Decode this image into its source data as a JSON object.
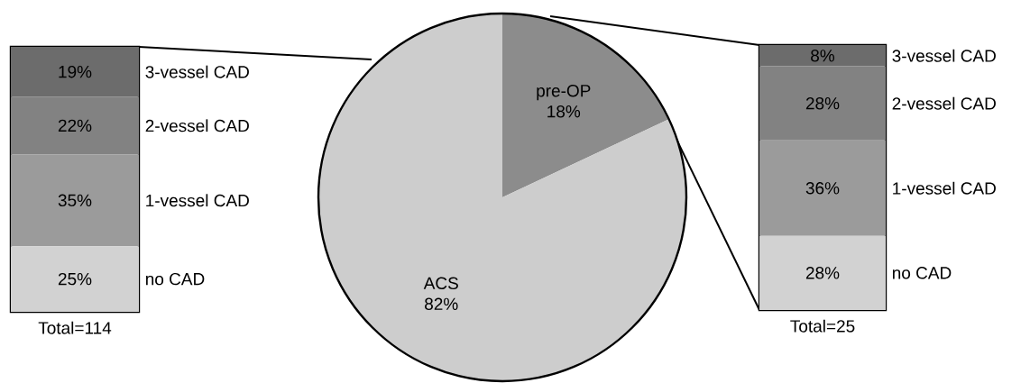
{
  "chart_data": [
    {
      "type": "bar",
      "stacked": true,
      "categories": [
        null
      ],
      "xlabel": "Total=114",
      "series": [
        {
          "name": "no CAD",
          "color": "#d2d2d2",
          "values": [
            25
          ],
          "value_labels": [
            "25%"
          ]
        },
        {
          "name": "1-vessel CAD",
          "color": "#9b9b9b",
          "values": [
            35
          ],
          "value_labels": [
            "35%"
          ]
        },
        {
          "name": "2-vessel CAD",
          "color": "#828282",
          "values": [
            22
          ],
          "value_labels": [
            "22%"
          ]
        },
        {
          "name": "3-vessel CAD",
          "color": "#6c6c6c",
          "values": [
            19
          ],
          "value_labels": [
            "19%"
          ]
        }
      ]
    },
    {
      "type": "pie",
      "categories": [
        "pre-OP",
        "ACS"
      ],
      "values": [
        18,
        82
      ],
      "colors": [
        "#8c8c8c",
        "#cdcdcd"
      ],
      "value_labels": [
        "18%",
        "82%"
      ]
    },
    {
      "type": "bar",
      "stacked": true,
      "categories": [
        null
      ],
      "xlabel": "Total=25",
      "series": [
        {
          "name": "no CAD",
          "color": "#d2d2d2",
          "values": [
            28
          ],
          "value_labels": [
            "28%"
          ]
        },
        {
          "name": "1-vessel CAD",
          "color": "#9b9b9b",
          "values": [
            36
          ],
          "value_labels": [
            "36%"
          ]
        },
        {
          "name": "2-vessel CAD",
          "color": "#828282",
          "values": [
            28
          ],
          "value_labels": [
            "28%"
          ]
        },
        {
          "name": "3-vessel CAD",
          "color": "#6c6c6c",
          "values": [
            8
          ],
          "value_labels": [
            "8%"
          ]
        }
      ]
    }
  ]
}
